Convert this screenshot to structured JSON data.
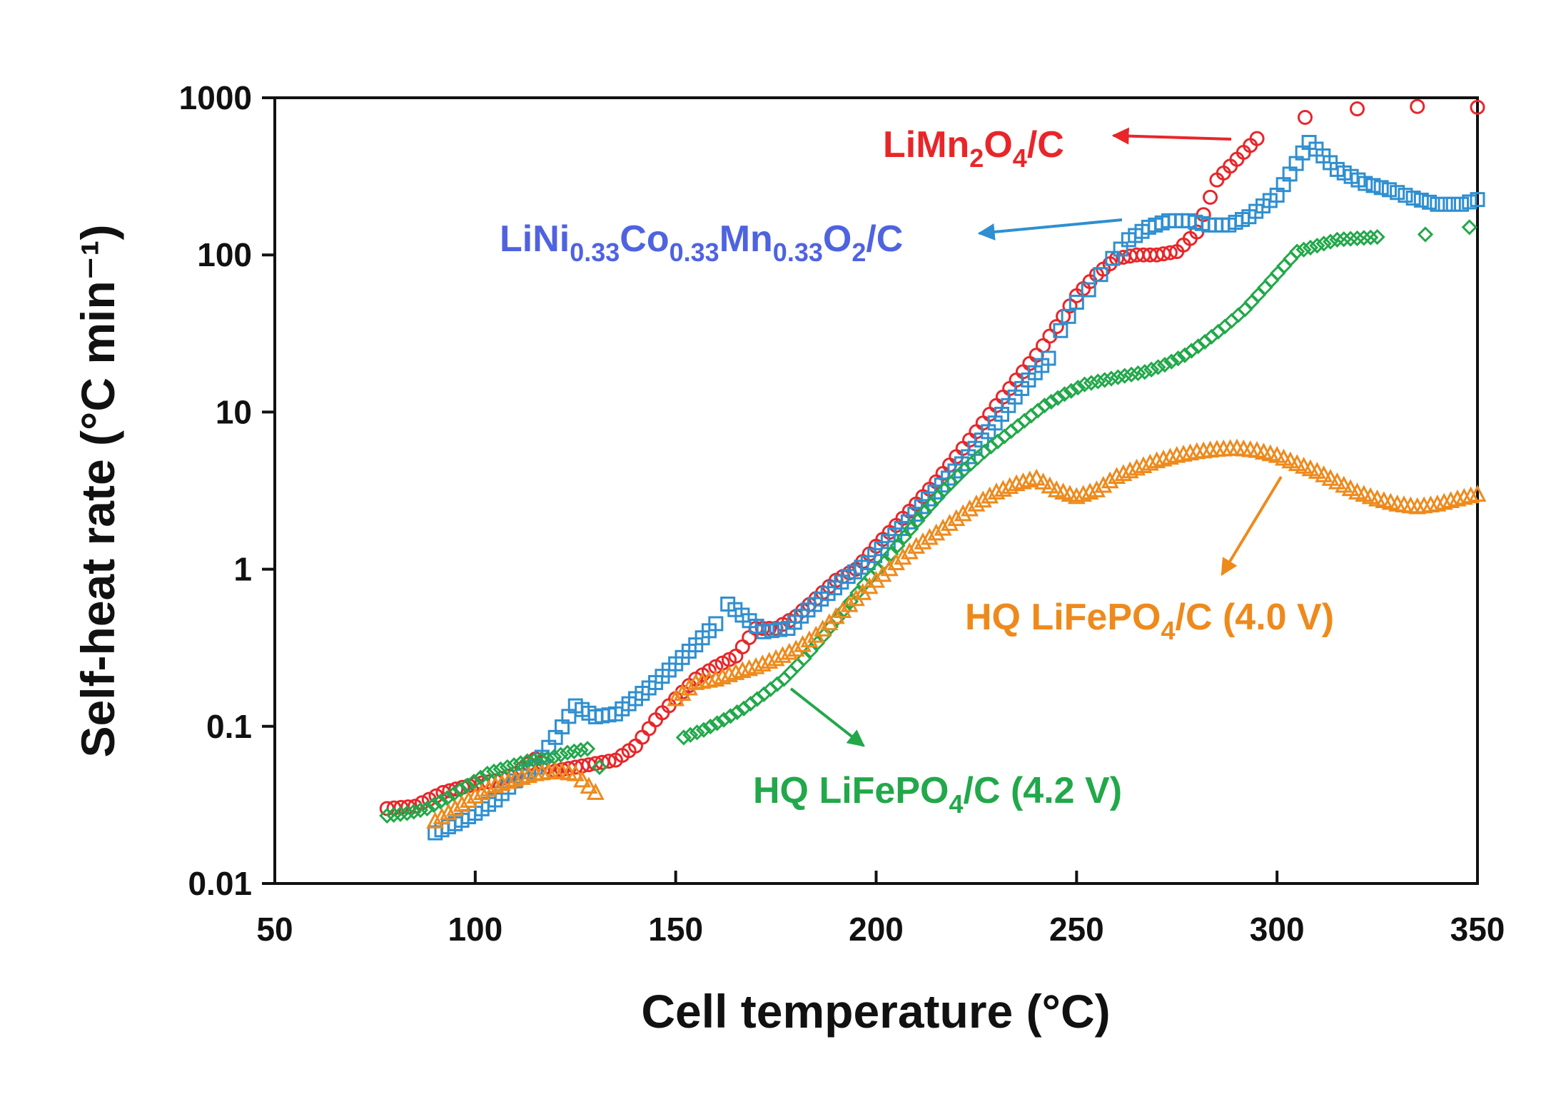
{
  "chart_data": {
    "type": "scatter",
    "title": "",
    "xlabel": "Cell temperature (°C)",
    "ylabel": "Self-heat rate (°C min⁻¹)",
    "xlim": [
      50,
      350
    ],
    "ylim": [
      0.01,
      1000
    ],
    "yscale": "log",
    "x_ticks": [
      50,
      100,
      150,
      200,
      250,
      300,
      350
    ],
    "x_tick_labels": [
      "50",
      "100",
      "150",
      "200",
      "250",
      "300",
      "350"
    ],
    "y_ticks": [
      0.01,
      0.1,
      1,
      10,
      100,
      1000
    ],
    "y_tick_labels": [
      "0.01",
      "0.1",
      "1",
      "10",
      "100",
      "1000"
    ],
    "grid": false,
    "series": [
      {
        "name": "LiMn2O4/C",
        "color": "#e8262a",
        "marker": "circle",
        "points": [
          [
            78,
            0.03
          ],
          [
            85,
            0.031
          ],
          [
            92,
            0.038
          ],
          [
            100,
            0.043
          ],
          [
            105,
            0.045
          ],
          [
            110,
            0.05
          ],
          [
            115,
            0.062
          ],
          [
            120,
            0.052
          ],
          [
            125,
            0.055
          ],
          [
            130,
            0.058
          ],
          [
            135,
            0.061
          ],
          [
            140,
            0.075
          ],
          [
            145,
            0.11
          ],
          [
            150,
            0.15
          ],
          [
            155,
            0.2
          ],
          [
            160,
            0.24
          ],
          [
            165,
            0.28
          ],
          [
            170,
            0.42
          ],
          [
            175,
            0.42
          ],
          [
            180,
            0.5
          ],
          [
            185,
            0.65
          ],
          [
            190,
            0.85
          ],
          [
            195,
            1.0
          ],
          [
            200,
            1.4
          ],
          [
            205,
            1.9
          ],
          [
            210,
            2.6
          ],
          [
            215,
            3.6
          ],
          [
            220,
            5.2
          ],
          [
            225,
            7.5
          ],
          [
            230,
            11
          ],
          [
            235,
            16
          ],
          [
            240,
            23
          ],
          [
            245,
            35
          ],
          [
            250,
            55
          ],
          [
            255,
            75
          ],
          [
            260,
            95
          ],
          [
            265,
            100
          ],
          [
            270,
            100
          ],
          [
            275,
            105
          ],
          [
            280,
            140
          ],
          [
            285,
            300
          ],
          [
            295,
            550
          ],
          [
            307,
            750
          ],
          [
            320,
            850
          ],
          [
            335,
            880
          ],
          [
            350,
            870
          ]
        ]
      },
      {
        "name": "LiNi0.33Co0.33Mn0.33O2/C",
        "color": "#2f8fd0",
        "marker": "square",
        "points": [
          [
            90,
            0.021
          ],
          [
            95,
            0.024
          ],
          [
            100,
            0.028
          ],
          [
            105,
            0.034
          ],
          [
            110,
            0.045
          ],
          [
            115,
            0.055
          ],
          [
            120,
            0.085
          ],
          [
            125,
            0.135
          ],
          [
            130,
            0.115
          ],
          [
            135,
            0.12
          ],
          [
            140,
            0.15
          ],
          [
            145,
            0.19
          ],
          [
            150,
            0.25
          ],
          [
            155,
            0.33
          ],
          [
            160,
            0.45
          ],
          [
            163,
            0.6
          ],
          [
            172,
            0.4
          ],
          [
            178,
            0.42
          ],
          [
            183,
            0.55
          ],
          [
            188,
            0.7
          ],
          [
            193,
            0.9
          ],
          [
            198,
            1.1
          ],
          [
            203,
            1.5
          ],
          [
            208,
            2.0
          ],
          [
            213,
            2.8
          ],
          [
            218,
            3.8
          ],
          [
            223,
            5.2
          ],
          [
            228,
            7.5
          ],
          [
            233,
            11
          ],
          [
            238,
            16
          ],
          [
            243,
            22
          ],
          [
            246,
            33
          ],
          [
            250,
            50
          ],
          [
            253,
            60
          ],
          [
            256,
            75
          ],
          [
            259,
            95
          ],
          [
            263,
            125
          ],
          [
            268,
            150
          ],
          [
            273,
            165
          ],
          [
            278,
            165
          ],
          [
            283,
            155
          ],
          [
            288,
            155
          ],
          [
            293,
            175
          ],
          [
            300,
            240
          ],
          [
            308,
            520
          ],
          [
            315,
            350
          ],
          [
            322,
            285
          ],
          [
            328,
            260
          ],
          [
            334,
            230
          ],
          [
            340,
            210
          ],
          [
            346,
            210
          ],
          [
            350,
            225
          ]
        ]
      },
      {
        "name": "HQ LiFePO4/C (4.2 V)",
        "color": "#22a84a",
        "marker": "diamond",
        "points": [
          [
            78,
            0.027
          ],
          [
            83,
            0.028
          ],
          [
            88,
            0.03
          ],
          [
            93,
            0.035
          ],
          [
            98,
            0.042
          ],
          [
            103,
            0.05
          ],
          [
            108,
            0.055
          ],
          [
            113,
            0.06
          ],
          [
            118,
            0.062
          ],
          [
            123,
            0.068
          ],
          [
            128,
            0.072
          ],
          [
            131,
            0.055
          ],
          [
            152,
            0.085
          ],
          [
            157,
            0.095
          ],
          [
            162,
            0.11
          ],
          [
            167,
            0.13
          ],
          [
            172,
            0.16
          ],
          [
            177,
            0.2
          ],
          [
            182,
            0.27
          ],
          [
            187,
            0.38
          ],
          [
            192,
            0.55
          ],
          [
            197,
            0.8
          ],
          [
            202,
            1.1
          ],
          [
            207,
            1.6
          ],
          [
            212,
            2.3
          ],
          [
            217,
            3.2
          ],
          [
            222,
            4.3
          ],
          [
            227,
            5.6
          ],
          [
            232,
            7.0
          ],
          [
            237,
            8.8
          ],
          [
            242,
            11
          ],
          [
            247,
            13
          ],
          [
            252,
            15
          ],
          [
            257,
            16
          ],
          [
            262,
            17
          ],
          [
            267,
            18
          ],
          [
            272,
            20
          ],
          [
            277,
            23
          ],
          [
            282,
            28
          ],
          [
            287,
            35
          ],
          [
            292,
            45
          ],
          [
            297,
            62
          ],
          [
            305,
            105
          ],
          [
            315,
            125
          ],
          [
            325,
            130
          ],
          [
            337,
            135
          ],
          [
            348,
            150
          ]
        ]
      },
      {
        "name": "HQ LiFePO4/C (4.0 V)",
        "color": "#ee8a1c",
        "marker": "triangle",
        "points": [
          [
            90,
            0.025
          ],
          [
            95,
            0.03
          ],
          [
            100,
            0.036
          ],
          [
            105,
            0.042
          ],
          [
            110,
            0.046
          ],
          [
            115,
            0.05
          ],
          [
            120,
            0.052
          ],
          [
            125,
            0.05
          ],
          [
            130,
            0.038
          ],
          [
            150,
            0.15
          ],
          [
            155,
            0.19
          ],
          [
            160,
            0.2
          ],
          [
            165,
            0.22
          ],
          [
            170,
            0.24
          ],
          [
            175,
            0.27
          ],
          [
            180,
            0.31
          ],
          [
            185,
            0.38
          ],
          [
            190,
            0.5
          ],
          [
            195,
            0.65
          ],
          [
            200,
            0.85
          ],
          [
            205,
            1.1
          ],
          [
            210,
            1.4
          ],
          [
            215,
            1.7
          ],
          [
            220,
            2.1
          ],
          [
            225,
            2.6
          ],
          [
            230,
            3.1
          ],
          [
            235,
            3.5
          ],
          [
            240,
            3.8
          ],
          [
            245,
            3.2
          ],
          [
            250,
            2.9
          ],
          [
            255,
            3.2
          ],
          [
            260,
            3.9
          ],
          [
            265,
            4.4
          ],
          [
            270,
            4.9
          ],
          [
            275,
            5.3
          ],
          [
            280,
            5.6
          ],
          [
            285,
            5.8
          ],
          [
            290,
            5.9
          ],
          [
            295,
            5.7
          ],
          [
            300,
            5.3
          ],
          [
            305,
            4.7
          ],
          [
            310,
            4.2
          ],
          [
            315,
            3.6
          ],
          [
            320,
            3.1
          ],
          [
            325,
            2.8
          ],
          [
            330,
            2.6
          ],
          [
            335,
            2.5
          ],
          [
            340,
            2.6
          ],
          [
            345,
            2.8
          ],
          [
            350,
            3.0
          ]
        ]
      }
    ],
    "annotations": [
      {
        "name": "limn2o4",
        "parts": [
          "LiMn",
          "2",
          "O",
          "4",
          "/C"
        ],
        "color": "#e8262a"
      },
      {
        "name": "nmc",
        "parts": [
          "LiNi",
          "0.33",
          "Co",
          "0.33",
          "Mn",
          "0.33",
          "O",
          "2",
          "/C"
        ],
        "color": "#4f63e0"
      },
      {
        "name": "lfp40",
        "parts": [
          "HQ LiFePO",
          "4",
          "/C (4.0 V)"
        ],
        "color": "#ee8a1c"
      },
      {
        "name": "lfp42",
        "parts": [
          "HQ LiFePO",
          "4",
          "/C (4.2 V)"
        ],
        "color": "#22a84a"
      }
    ]
  }
}
